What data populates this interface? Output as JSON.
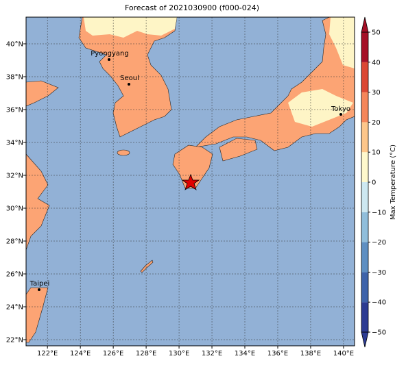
{
  "title": "Forecast of 2021030900 (f000-024)",
  "map": {
    "xlim": [
      120.7,
      140.67
    ],
    "ylim": [
      21.625,
      41.625
    ],
    "xticks": [
      {
        "value": 122,
        "label": "122°E"
      },
      {
        "value": 124,
        "label": "124°E"
      },
      {
        "value": 126,
        "label": "126°E"
      },
      {
        "value": 128,
        "label": "128°E"
      },
      {
        "value": 130,
        "label": "130°E"
      },
      {
        "value": 132,
        "label": "132°E"
      },
      {
        "value": 134,
        "label": "134°E"
      },
      {
        "value": 136,
        "label": "136°E"
      },
      {
        "value": 138,
        "label": "138°E"
      },
      {
        "value": 140,
        "label": "140°E"
      }
    ],
    "yticks": [
      {
        "value": 22,
        "label": "22°N"
      },
      {
        "value": 24,
        "label": "24°N"
      },
      {
        "value": 26,
        "label": "26°N"
      },
      {
        "value": 28,
        "label": "28°N"
      },
      {
        "value": 30,
        "label": "30°N"
      },
      {
        "value": 32,
        "label": "32°N"
      },
      {
        "value": 34,
        "label": "34°N"
      },
      {
        "value": 36,
        "label": "36°N"
      },
      {
        "value": 38,
        "label": "38°N"
      },
      {
        "value": 40,
        "label": "40°N"
      }
    ],
    "cities": [
      "Pyongyang",
      "Seoul",
      "Tokyo",
      "Taipei"
    ]
  },
  "colorbar": {
    "label": "Max Temperature (°C)",
    "lim": [
      -50,
      50
    ],
    "ticks": [
      {
        "value": -50,
        "label": "−50"
      },
      {
        "value": -40,
        "label": "−40"
      },
      {
        "value": -30,
        "label": "−30"
      },
      {
        "value": -20,
        "label": "−20"
      },
      {
        "value": -10,
        "label": "−10"
      },
      0,
      10,
      20,
      30,
      40,
      50
    ],
    "colors": [
      "#2c3b92",
      "#3e63aa",
      "#5e8fc2",
      "#90bedb",
      "#cde8f1",
      "#fef8cc",
      "#fdc68a",
      "#f5865a",
      "#db4733",
      "#a50f26"
    ]
  }
}
